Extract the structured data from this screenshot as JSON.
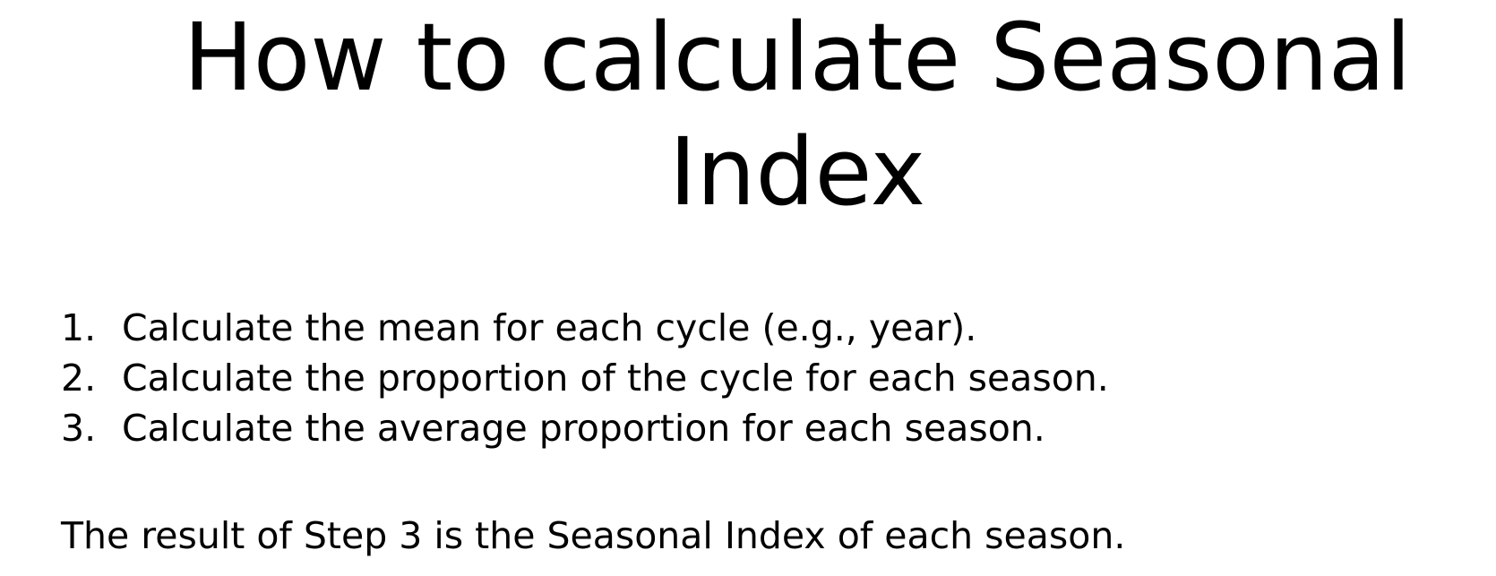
{
  "title": "How to calculate Seasonal Index",
  "steps": [
    {
      "number": "1.",
      "text": "Calculate the mean for each cycle (e.g., year)."
    },
    {
      "number": "2.",
      "text": "Calculate the proportion of the cycle for each season."
    },
    {
      "number": "3.",
      "text": "Calculate the average proportion for each season."
    }
  ],
  "result": "The result of Step 3 is the Seasonal Index of each season."
}
